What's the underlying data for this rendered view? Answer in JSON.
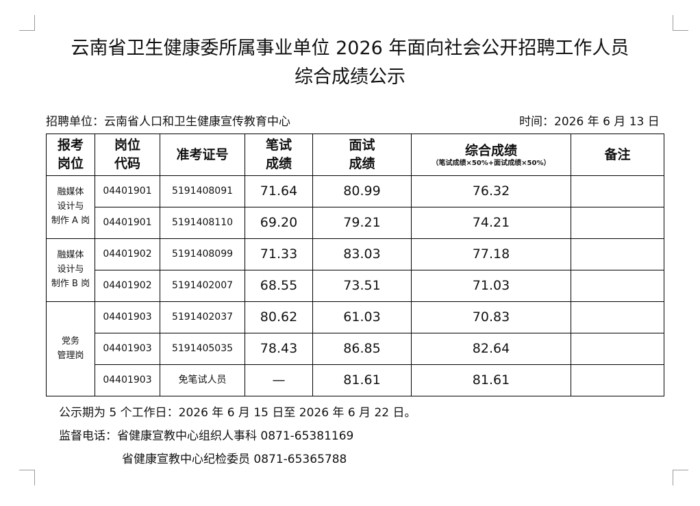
{
  "header": {
    "title_lines": [
      "云南省卫生健康委所属事业单位 2026 年面向社会公开招聘工作人员",
      "综合成绩公示"
    ],
    "unit": "招聘单位：云南省人口和卫生健康宣传教育中心",
    "date": "时间：2026 年 6 月 13 日"
  },
  "table": {
    "columns": [
      [
        "报考",
        "岗位"
      ],
      [
        "岗位",
        "代码"
      ],
      [
        "准考证号"
      ],
      [
        "笔试",
        "成绩"
      ],
      [
        "面试",
        "成绩"
      ],
      [
        "综合成绩"
      ],
      [
        "备注"
      ]
    ],
    "total_note": "（笔试成绩×50%+面试成绩×50%）",
    "groups": [
      {
        "position": [
          "融媒体",
          "设计与",
          "制作 A 岗"
        ],
        "rows": [
          [
            "04401901",
            "5191408091",
            "71.64",
            "80.99",
            "76.32"
          ],
          [
            "04401901",
            "5191408110",
            "69.20",
            "79.21",
            "74.21"
          ]
        ]
      },
      {
        "position": [
          "融媒体",
          "设计与",
          "制作 B 岗"
        ],
        "rows": [
          [
            "04401902",
            "5191408099",
            "71.33",
            "83.03",
            "77.18"
          ],
          [
            "04401902",
            "5191402007",
            "68.55",
            "73.51",
            "71.03"
          ]
        ]
      },
      {
        "position": [
          "党务",
          "管理岗"
        ],
        "rows": [
          [
            "04401903",
            "5191402037",
            "80.62",
            "61.03",
            "70.83"
          ],
          [
            "04401903",
            "5191405035",
            "78.43",
            "86.85",
            "82.64"
          ],
          [
            "04401903",
            "免笔试人员",
            "—",
            "81.61",
            "81.61"
          ]
        ]
      }
    ]
  },
  "footer": {
    "lines": [
      "公示期为 5 个工作日：2026 年 6 月 15 日至 2026 年 6 月 22 日。",
      "监督电话：省健康宣教中心组织人事科  0871-65381169",
      "省健康宣教中心纪检委员 0871-65365788"
    ]
  }
}
